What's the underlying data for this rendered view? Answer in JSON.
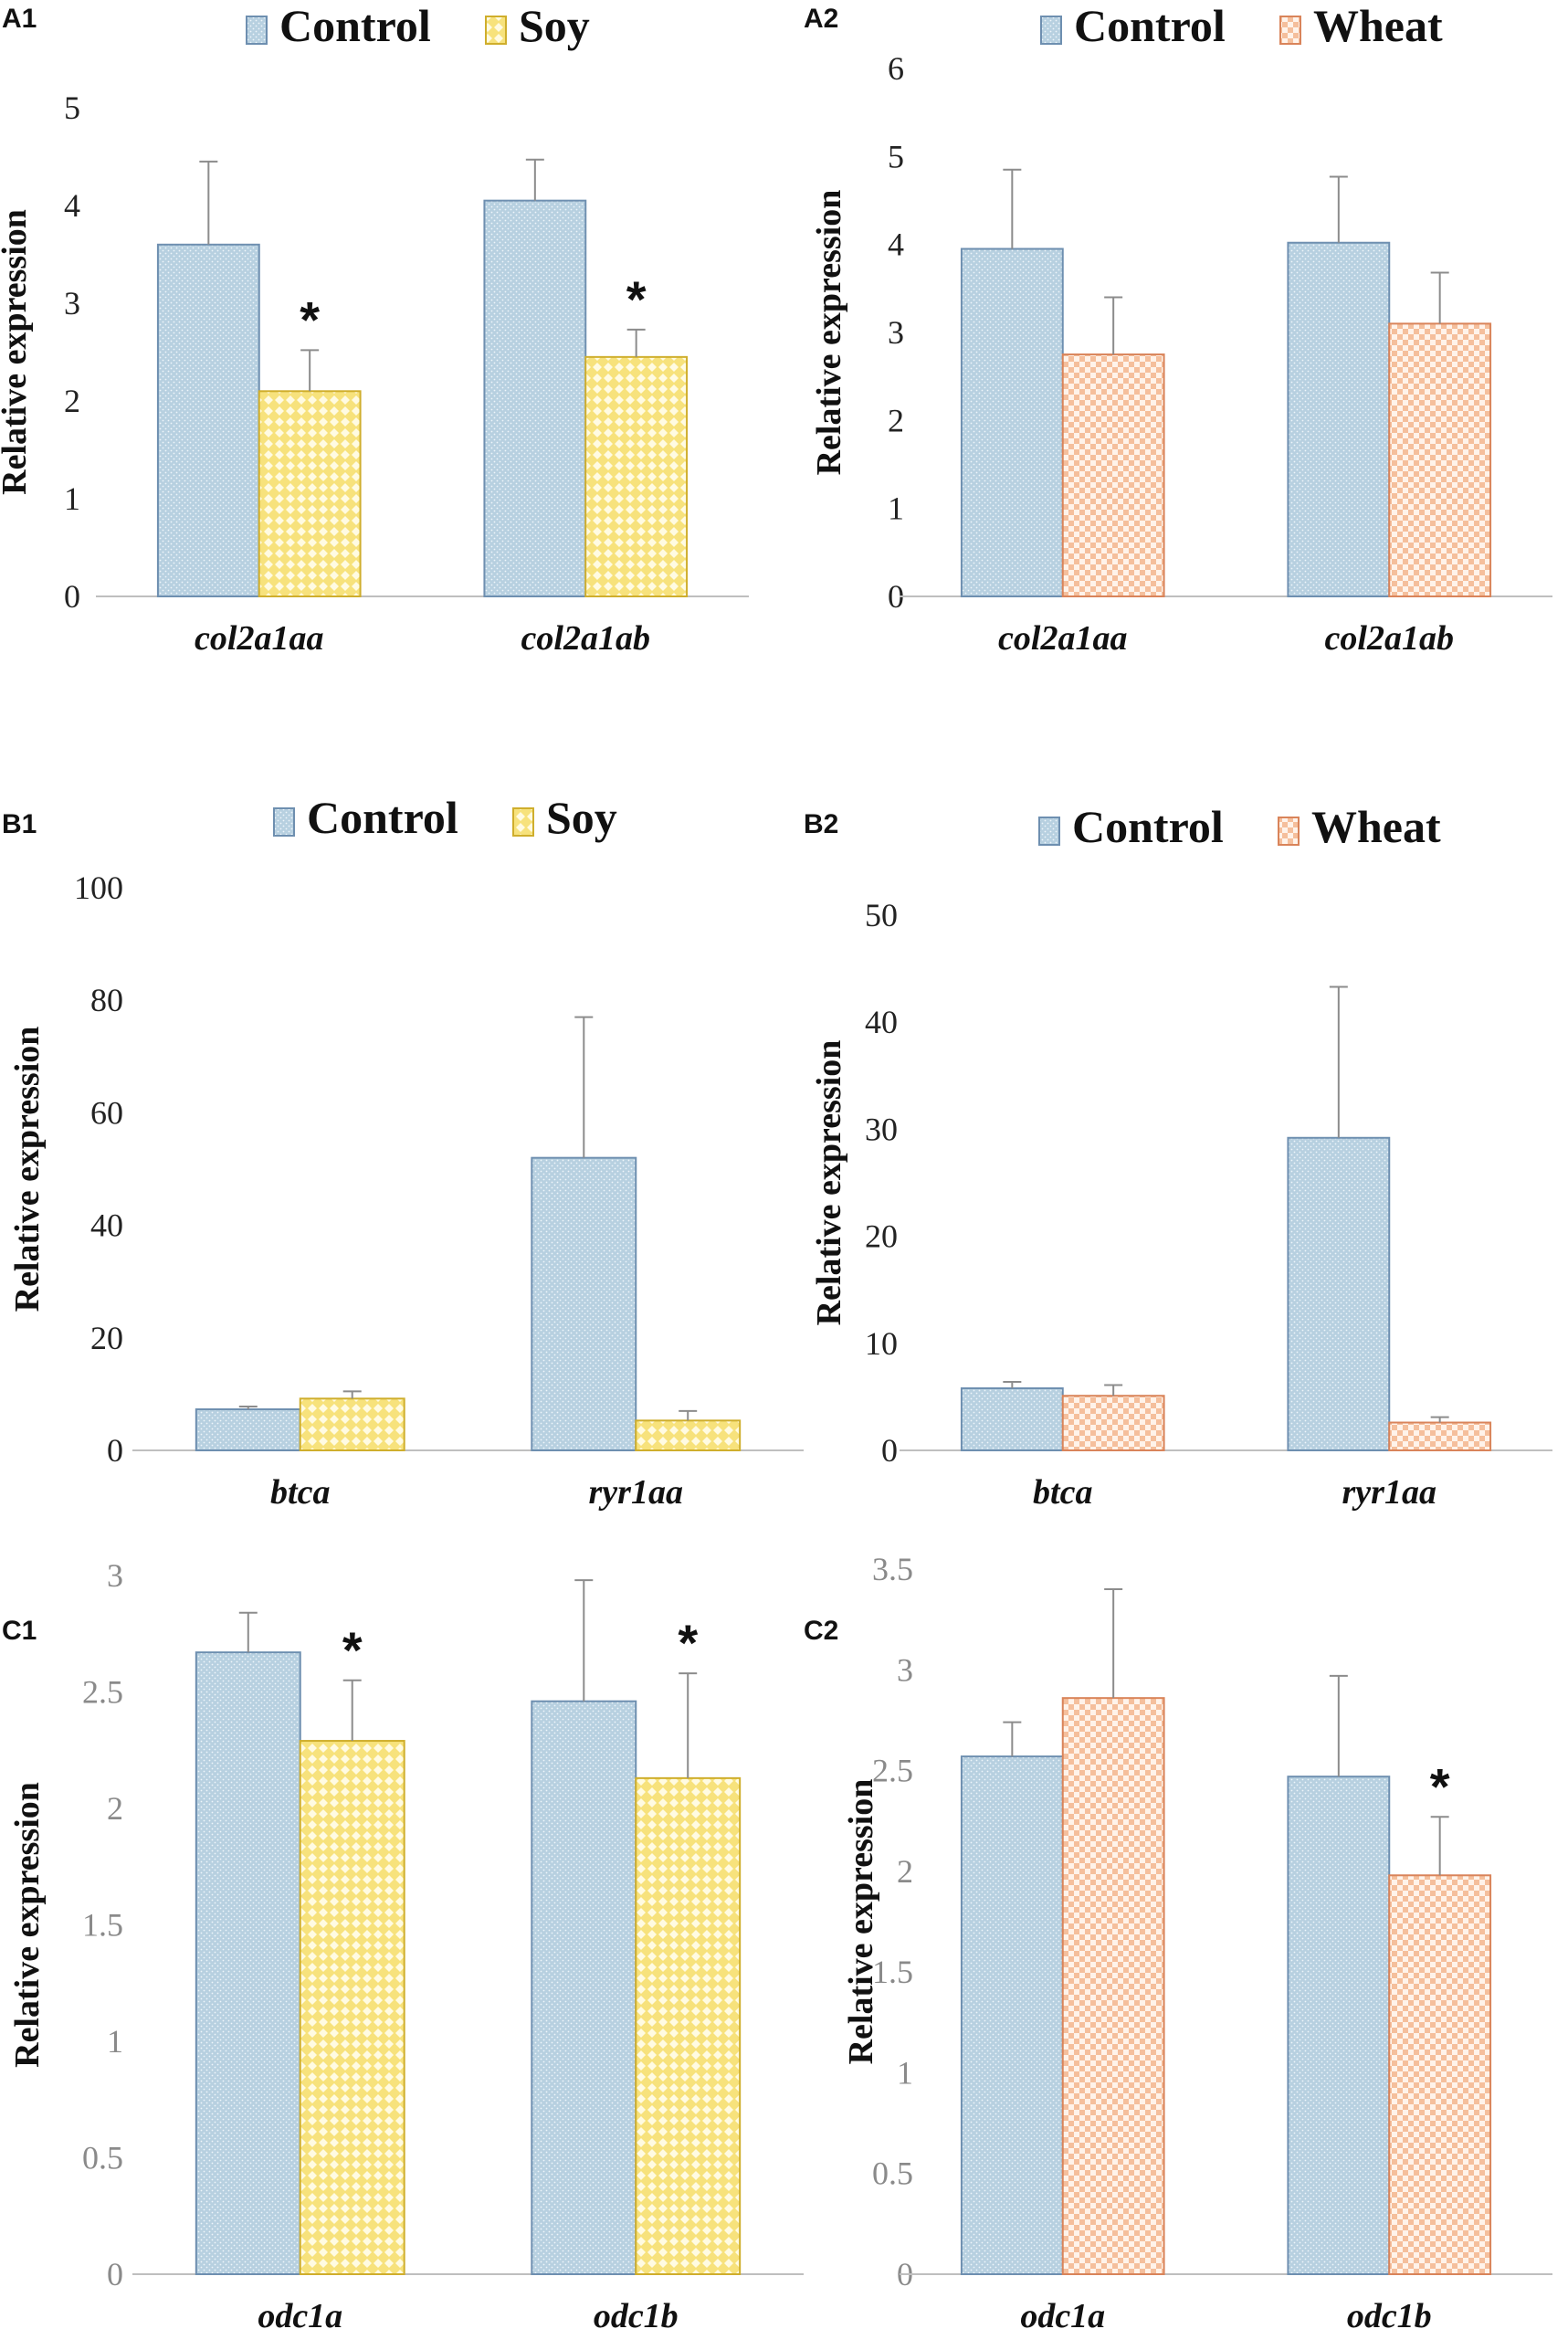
{
  "colors": {
    "Control": {
      "fill": "#b7d0e0",
      "stroke": "#6e8fb0",
      "dot": "#eef5fa"
    },
    "Soy": {
      "fill": "#f7e27c",
      "stroke": "#cfae2c",
      "dot": "#fffbe2"
    },
    "Wheat": {
      "fill": "#f5bf9c",
      "stroke": "#d9845a",
      "dot": "#fff3ea"
    },
    "errorbar": "#8c8c8c",
    "axis": "#bfbfbf"
  },
  "chart_data": [
    {
      "id": "A1",
      "panel": "A1",
      "type": "bar",
      "legend": [
        "Control",
        "Soy"
      ],
      "categories": [
        "col2a1aa",
        "col2a1ab"
      ],
      "series": [
        {
          "name": "Control",
          "values": [
            3.6,
            4.05
          ],
          "errors": [
            0.85,
            0.42
          ]
        },
        {
          "name": "Soy",
          "values": [
            2.1,
            2.45
          ],
          "errors": [
            0.42,
            0.28
          ]
        }
      ],
      "significance": [
        [
          null,
          "*"
        ],
        [
          null,
          "*"
        ]
      ],
      "ylabel": "Relative expression",
      "yticks": [
        "0",
        "1",
        "2",
        "3",
        "4",
        "5"
      ],
      "tick_values": [
        0,
        1,
        2,
        3,
        4,
        5
      ],
      "ylim": [
        0,
        5
      ]
    },
    {
      "id": "A2",
      "panel": "A2",
      "type": "bar",
      "legend": [
        "Control",
        "Wheat"
      ],
      "categories": [
        "col2a1aa",
        "col2a1ab"
      ],
      "series": [
        {
          "name": "Control",
          "values": [
            3.95,
            4.02
          ],
          "errors": [
            0.9,
            0.75
          ]
        },
        {
          "name": "Wheat",
          "values": [
            2.75,
            3.1
          ],
          "errors": [
            0.65,
            0.58
          ]
        }
      ],
      "significance": [
        [
          null,
          null
        ],
        [
          null,
          null
        ]
      ],
      "ylabel": "Relative expression",
      "yticks": [
        "0",
        "1",
        "2",
        "3",
        "4",
        "5",
        "6"
      ],
      "tick_values": [
        0,
        1,
        2,
        3,
        4,
        5,
        6
      ],
      "ylim": [
        0,
        6
      ]
    },
    {
      "id": "B1",
      "panel": "B1",
      "type": "bar",
      "legend": [
        "Control",
        "Soy"
      ],
      "categories": [
        "btca",
        "ryr1aa"
      ],
      "series": [
        {
          "name": "Control",
          "values": [
            7.3,
            52
          ],
          "errors": [
            0.5,
            25
          ]
        },
        {
          "name": "Soy",
          "values": [
            9.2,
            5.3
          ],
          "errors": [
            1.3,
            1.7
          ]
        }
      ],
      "significance": [
        [
          null,
          null
        ],
        [
          null,
          null
        ]
      ],
      "ylabel": "Relative expression",
      "yticks": [
        "0",
        "20",
        "40",
        "60",
        "80",
        "100"
      ],
      "tick_values": [
        0,
        20,
        40,
        60,
        80,
        100
      ],
      "ylim": [
        0,
        100
      ]
    },
    {
      "id": "B2",
      "panel": "B2",
      "type": "bar",
      "legend": [
        "Control",
        "Wheat"
      ],
      "categories": [
        "btca",
        "ryr1aa"
      ],
      "series": [
        {
          "name": "Control",
          "values": [
            5.8,
            29.2
          ],
          "errors": [
            0.6,
            14.1
          ]
        },
        {
          "name": "Wheat",
          "values": [
            5.1,
            2.6
          ],
          "errors": [
            1.0,
            0.5
          ]
        }
      ],
      "significance": [
        [
          null,
          null
        ],
        [
          null,
          null
        ]
      ],
      "ylabel": "Relative expression",
      "yticks": [
        "0",
        "10",
        "20",
        "30",
        "40",
        "50"
      ],
      "tick_values": [
        0,
        10,
        20,
        30,
        40,
        50
      ],
      "ylim": [
        0,
        50
      ]
    },
    {
      "id": "C1",
      "panel": "C1",
      "type": "bar",
      "legend": [],
      "categories": [
        "odc1a",
        "odc1b"
      ],
      "series": [
        {
          "name": "Control",
          "values": [
            2.67,
            2.46
          ],
          "errors": [
            0.17,
            0.52
          ]
        },
        {
          "name": "Soy",
          "values": [
            2.29,
            2.13
          ],
          "errors": [
            0.26,
            0.45
          ]
        }
      ],
      "significance": [
        [
          null,
          "*"
        ],
        [
          null,
          "*"
        ]
      ],
      "ylabel": "Relative expression",
      "yticks": [
        "0",
        "0.5",
        "1",
        "1.5",
        "2",
        "2.5",
        "3"
      ],
      "tick_values": [
        0,
        0.5,
        1,
        1.5,
        2,
        2.5,
        3
      ],
      "ylim": [
        0,
        3
      ]
    },
    {
      "id": "C2",
      "panel": "C2",
      "type": "bar",
      "legend": [],
      "categories": [
        "odc1a",
        "odc1b"
      ],
      "series": [
        {
          "name": "Control",
          "values": [
            2.57,
            2.47
          ],
          "errors": [
            0.17,
            0.5
          ]
        },
        {
          "name": "Wheat",
          "values": [
            2.86,
            1.98
          ],
          "errors": [
            0.54,
            0.29
          ]
        }
      ],
      "significance": [
        [
          null,
          null
        ],
        [
          null,
          "*"
        ]
      ],
      "ylabel": "Relative expression",
      "yticks": [
        "0",
        "0.5",
        "1",
        "1.5",
        "2",
        "2.5",
        "3",
        "3.5"
      ],
      "tick_values": [
        0,
        0.5,
        1,
        1.5,
        2,
        2.5,
        3,
        3.5
      ],
      "ylim": [
        0,
        3.5
      ]
    }
  ]
}
